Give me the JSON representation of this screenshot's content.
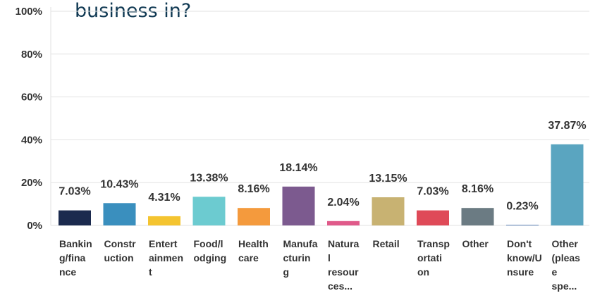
{
  "chart_data": {
    "type": "bar",
    "title": "business in?",
    "categories": [
      [
        "Bankin",
        "g/fina",
        "nce"
      ],
      [
        "Constr",
        "uction"
      ],
      [
        "Entert",
        "ainmen",
        "t"
      ],
      [
        "Food/l",
        "odging"
      ],
      [
        "Health",
        "care"
      ],
      [
        "Manufa",
        "cturin",
        "g"
      ],
      [
        "Natura",
        "l",
        "resour",
        "ces..."
      ],
      [
        "Retail"
      ],
      [
        "Transp",
        "ortati",
        "on"
      ],
      [
        "Other"
      ],
      [
        "Don't",
        "know/U",
        "nsure"
      ],
      [
        "Other",
        "(pleas",
        "e",
        "spe..."
      ]
    ],
    "values": [
      7.03,
      10.43,
      4.31,
      13.38,
      8.16,
      18.14,
      2.04,
      13.15,
      7.03,
      8.16,
      0.23,
      37.87
    ],
    "value_labels": [
      "7.03%",
      "10.43%",
      "4.31%",
      "13.38%",
      "8.16%",
      "18.14%",
      "2.04%",
      "13.15%",
      "7.03%",
      "8.16%",
      "0.23%",
      "37.87%"
    ],
    "colors": [
      "#1b2a4e",
      "#3a8fbe",
      "#f4c430",
      "#6ccbd0",
      "#f49a3d",
      "#7c5a8f",
      "#e05a8a",
      "#c8b272",
      "#df4a58",
      "#6b7b83",
      "#1b4f9c",
      "#5aa5c0"
    ],
    "ylim": [
      0,
      100
    ],
    "yticks": [
      0,
      20,
      40,
      60,
      80,
      100
    ],
    "ytick_labels": [
      "0%",
      "20%",
      "40%",
      "60%",
      "80%",
      "100%"
    ],
    "grid": true
  }
}
